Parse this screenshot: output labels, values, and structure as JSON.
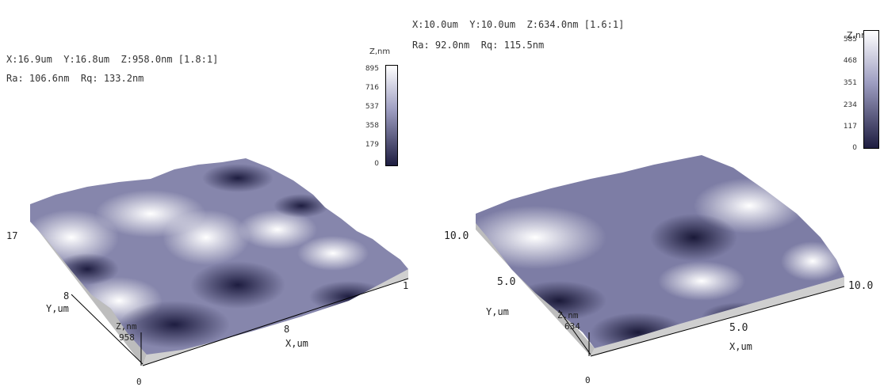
{
  "left": {
    "info_line1": "X:16.9um  Y:16.8um  Z:958.0nm [1.8:1]",
    "info_line2": "Ra: 106.6nm  Rq: 133.2nm",
    "scale": {
      "title": "Z,nm",
      "ticks": [
        "895",
        "716",
        "537",
        "358",
        "179",
        "0"
      ]
    },
    "axes": {
      "y_label": "Y,um",
      "y_ticks": [
        "17",
        "8"
      ],
      "x_label": "X,um",
      "x_ticks": [
        "8",
        "1"
      ],
      "z_label": "Z,nm",
      "z_top": "958",
      "z_bottom": "0"
    }
  },
  "right": {
    "info_line1": "X:10.0um  Y:10.0um  Z:634.0nm [1.6:1]",
    "info_line2": "Ra: 92.0nm  Rq: 115.5nm",
    "scale": {
      "title": "Z,nm",
      "ticks": [
        "585",
        "468",
        "351",
        "234",
        "117",
        "0"
      ]
    },
    "axes": {
      "y_label": "Y,um",
      "y_ticks": [
        "10.0",
        "5.0"
      ],
      "x_label": "X,um",
      "x_ticks": [
        "5.0",
        "10.0"
      ],
      "z_label": "Z,nm",
      "z_top": "634",
      "z_bottom": "0"
    }
  },
  "colors": {
    "surface_dark": "#1e1d40",
    "surface_mid": "#6e6e98",
    "surface_light": "#f4f4fa",
    "base_gray": "#cccccc"
  }
}
